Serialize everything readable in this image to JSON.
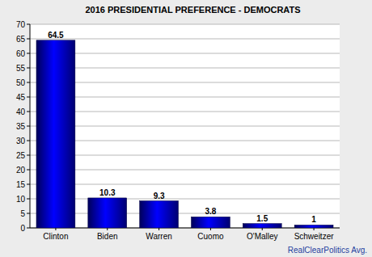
{
  "chart_data": {
    "type": "bar",
    "title": "2016 PRESIDENTIAL PREFERENCE - DEMOCRATS",
    "categories": [
      "Clinton",
      "Biden",
      "Warren",
      "Cuomo",
      "O'Malley",
      "Schweitzer"
    ],
    "values": [
      64.5,
      10.3,
      9.3,
      3.8,
      1.5,
      1
    ],
    "color": "#0000ff",
    "ylim": [
      0,
      70
    ],
    "yticks": [
      0,
      5,
      10,
      15,
      20,
      25,
      30,
      35,
      40,
      45,
      50,
      55,
      60,
      65,
      70
    ],
    "grid": true,
    "data_labels": true,
    "source": "RealClearPolitics Avg."
  }
}
